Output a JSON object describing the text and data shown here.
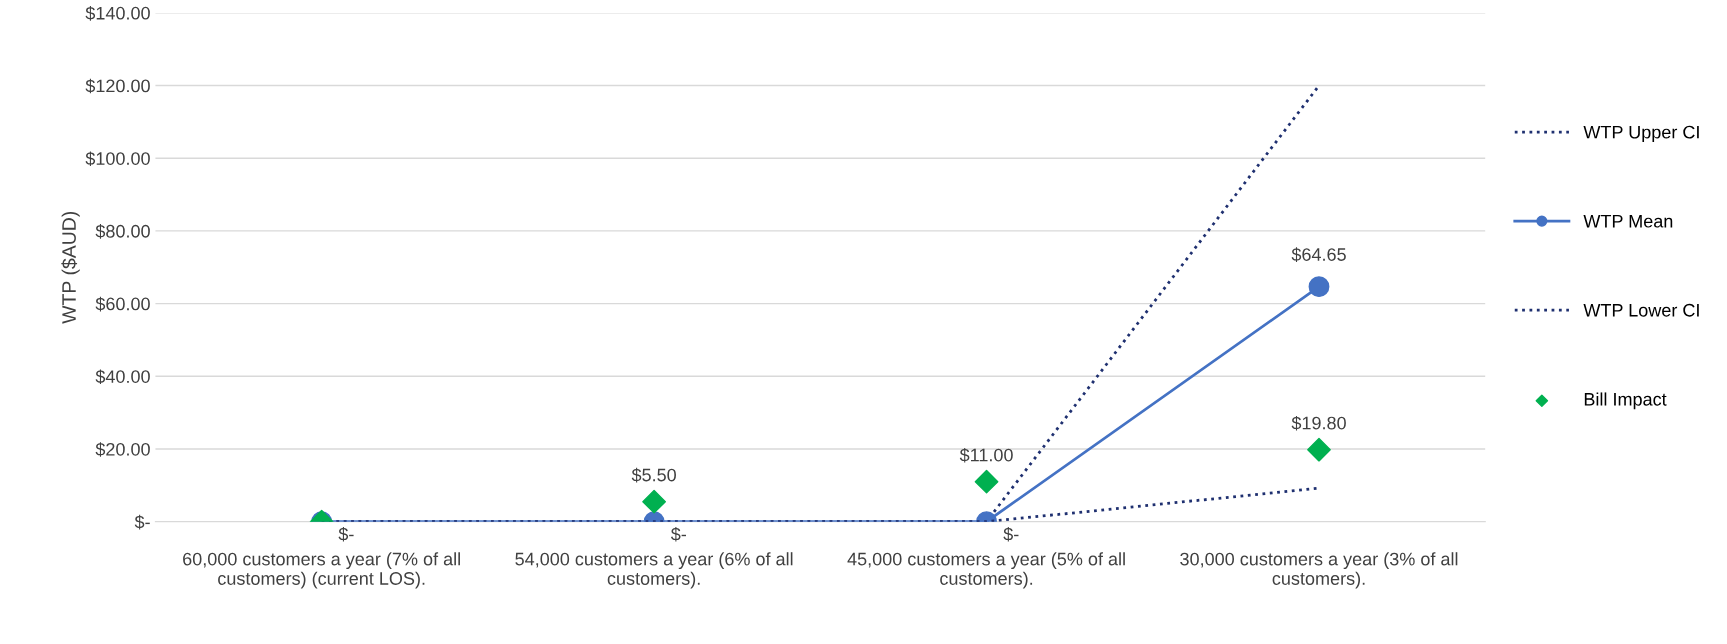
{
  "chart_data": {
    "type": "line",
    "ylabel": "WTP ($AUD)",
    "categories": [
      "60,000 customers a year (7% of all\ncustomers) (current LOS).",
      "54,000 customers a year (6% of all\ncustomers).",
      "45,000 customers a year (5% of all\ncustomers).",
      "30,000 customers a year (3% of all\ncustomers)."
    ],
    "series": [
      {
        "name": "WTP Upper CI",
        "color": "#1f3070",
        "values": [
          0,
          0,
          0,
          120
        ],
        "line_style": "dotted",
        "marker": "none"
      },
      {
        "name": "WTP Mean",
        "color": "#4472c4",
        "values": [
          0,
          0,
          0,
          64.65
        ],
        "line_style": "solid",
        "marker": "circle",
        "value_labels": [
          "$-",
          "$-",
          "$-",
          "$64.65"
        ]
      },
      {
        "name": "WTP Lower CI",
        "color": "#1f3070",
        "values": [
          0,
          0,
          0,
          9.2
        ],
        "line_style": "dotted",
        "marker": "none"
      },
      {
        "name": "Bill Impact",
        "type": "scatter",
        "color": "#00b050",
        "values": [
          0,
          5.5,
          11,
          19.8
        ],
        "marker": "diamond",
        "value_labels": [
          null,
          "$5.50",
          "$11.00",
          "$19.80"
        ]
      }
    ],
    "ylim": [
      0,
      140
    ],
    "yticks": [
      {
        "value": 0,
        "label": "$-"
      },
      {
        "value": 20,
        "label": "$20.00"
      },
      {
        "value": 40,
        "label": "$40.00"
      },
      {
        "value": 60,
        "label": "$60.00"
      },
      {
        "value": 80,
        "label": "$80.00"
      },
      {
        "value": 100,
        "label": "$100.00"
      },
      {
        "value": 120,
        "label": "$120.00"
      },
      {
        "value": 140,
        "label": "$140.00"
      }
    ],
    "grid": "y",
    "legend": "right"
  }
}
